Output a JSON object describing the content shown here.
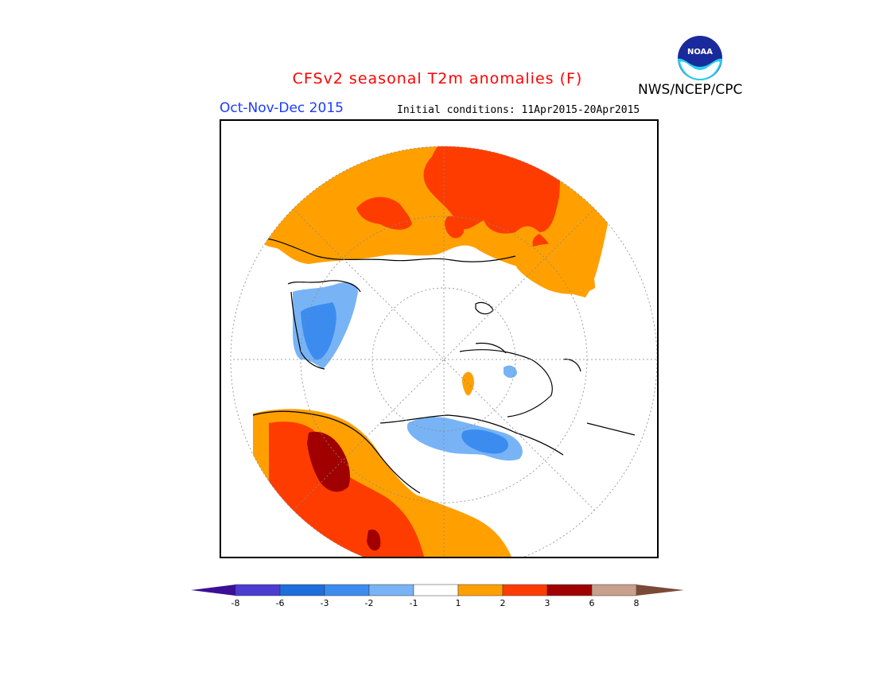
{
  "header": {
    "title": "CFSv2 seasonal T2m anomalies (F)",
    "season": "Oct-Nov-Dec 2015",
    "initial_conditions": "Initial conditions: 11Apr2015-20Apr2015",
    "agency": "NWS/NCEP/CPC",
    "logo_text": "NOAA"
  },
  "colors": {
    "title": "#ff0000",
    "season": "#1a3cff",
    "c_m8": "#3c0f96",
    "c_m6": "#4b3cd2",
    "c_m3": "#1e6edc",
    "c_m2": "#3c8cf0",
    "c_m1": "#78b4f5",
    "c_0": "#ffffff",
    "c_p1": "#ffa000",
    "c_p2": "#ff3c00",
    "c_p3": "#b40000",
    "c_p6": "#a00000",
    "c_p8": "#c8a08c",
    "c_p8_end": "#7a4a38"
  },
  "legend": {
    "labels": [
      "-8",
      "-6",
      "-3",
      "-2",
      "-1",
      "1",
      "2",
      "3",
      "6",
      "8"
    ]
  },
  "map": {
    "projection": "north-polar-stereographic"
  }
}
